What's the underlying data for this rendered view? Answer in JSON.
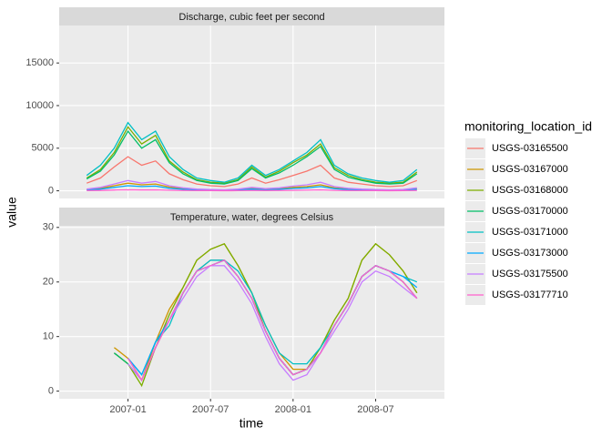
{
  "chart_data": {
    "type": "line",
    "x_label": "time",
    "y_label": "value",
    "x": [
      "2006-10",
      "2006-11",
      "2006-12",
      "2007-01",
      "2007-02",
      "2007-03",
      "2007-04",
      "2007-05",
      "2007-06",
      "2007-07",
      "2007-08",
      "2007-09",
      "2007-10",
      "2007-11",
      "2007-12",
      "2008-01",
      "2008-02",
      "2008-03",
      "2008-04",
      "2008-05",
      "2008-06",
      "2008-07",
      "2008-08",
      "2008-09",
      "2008-10"
    ],
    "xlim": [
      "2006-08",
      "2008-12"
    ],
    "xticks": [
      "2007-01",
      "2007-07",
      "2008-01",
      "2008-07"
    ],
    "grid": true,
    "legend": {
      "title": "monitoring_location_id",
      "position": "right",
      "series": [
        {
          "name": "USGS-03165500",
          "color": "#F8766D"
        },
        {
          "name": "USGS-03167000",
          "color": "#CD9600"
        },
        {
          "name": "USGS-03168000",
          "color": "#7CAE00"
        },
        {
          "name": "USGS-03170000",
          "color": "#00BE67"
        },
        {
          "name": "USGS-03171000",
          "color": "#00BFC4"
        },
        {
          "name": "USGS-03173000",
          "color": "#00A9FF"
        },
        {
          "name": "USGS-03175500",
          "color": "#C77CFF"
        },
        {
          "name": "USGS-03177710",
          "color": "#FF61CC"
        }
      ]
    },
    "panels": [
      {
        "title": "Discharge, cubic feet per second",
        "ylim": [
          -900,
          19400
        ],
        "yticks": [
          0,
          5000,
          10000,
          15000
        ],
        "series": [
          {
            "values": [
              900,
              1500,
              2800,
              4000,
              3000,
              3500,
              2000,
              1300,
              800,
              600,
              500,
              800,
              1500,
              900,
              1300,
              1800,
              2300,
              3000,
              1500,
              1000,
              800,
              600,
              500,
              600,
              1200
            ]
          },
          {
            "values": [
              150,
              300,
              600,
              900,
              700,
              800,
              450,
              250,
              150,
              100,
              80,
              150,
              300,
              180,
              250,
              400,
              500,
              700,
              350,
              200,
              150,
              100,
              80,
              100,
              250
            ]
          },
          {
            "values": [
              1500,
              2500,
              4500,
              7500,
              5500,
              6500,
              3500,
              2200,
              1300,
              1000,
              900,
              1300,
              2800,
              1600,
              2300,
              3300,
              4200,
              5500,
              2700,
              1800,
              1300,
              1000,
              900,
              1000,
              2200
            ]
          },
          {
            "values": [
              1400,
              2300,
              4200,
              7000,
              5000,
              6000,
              3300,
              2000,
              1200,
              900,
              800,
              1200,
              2600,
              1500,
              2100,
              3000,
              4000,
              5200,
              2500,
              1600,
              1200,
              900,
              800,
              900,
              2000
            ]
          },
          {
            "values": [
              1800,
              3000,
              5000,
              8000,
              6000,
              7000,
              4000,
              2500,
              1500,
              1200,
              1000,
              1500,
              3000,
              1800,
              2500,
              3500,
              4500,
              6000,
              3000,
              2000,
              1500,
              1200,
              1000,
              1200,
              2500
            ]
          },
          {
            "values": [
              100,
              200,
              400,
              600,
              500,
              550,
              300,
              180,
              100,
              80,
              60,
              100,
              200,
              120,
              180,
              280,
              350,
              500,
              250,
              150,
              100,
              80,
              60,
              80,
              180
            ]
          },
          {
            "values": [
              200,
              400,
              800,
              1200,
              900,
              1100,
              600,
              350,
              200,
              150,
              120,
              200,
              400,
              250,
              350,
              550,
              700,
              1000,
              500,
              300,
              200,
              150,
              120,
              150,
              350
            ]
          },
          {
            "values": [
              20,
              40,
              80,
              120,
              90,
              100,
              60,
              35,
              20,
              15,
              12,
              20,
              40,
              25,
              35,
              55,
              70,
              100,
              50,
              30,
              20,
              15,
              12,
              15,
              35
            ]
          }
        ]
      },
      {
        "title": "Temperature, water, degrees Celsius",
        "ylim": [
          -1.4,
          30.3
        ],
        "yticks": [
          0,
          10,
          20,
          30
        ],
        "series": [
          {
            "values": [
              null,
              null,
              7,
              5,
              2,
              8,
              13,
              18,
              22,
              24,
              24,
              21,
              17,
              11,
              6,
              3,
              4,
              7,
              12,
              16,
              21,
              23,
              22,
              20,
              17
            ]
          },
          {
            "values": [
              null,
              null,
              8,
              6,
              2,
              9,
              15,
              19,
              24,
              26,
              27,
              23,
              18,
              12,
              7,
              4,
              4,
              8,
              13,
              17,
              24,
              27,
              25,
              22,
              18
            ]
          },
          {
            "values": [
              null,
              null,
              7,
              5,
              1,
              8,
              14,
              19,
              24,
              26,
              27,
              23,
              18,
              11,
              6,
              3,
              4,
              8,
              13,
              17,
              24,
              27,
              25,
              22,
              18
            ]
          },
          {
            "values": [
              null,
              null,
              7,
              5,
              2,
              8,
              13,
              18,
              22,
              23,
              24,
              21,
              17,
              11,
              6,
              3,
              4,
              7,
              12,
              16,
              21,
              23,
              22,
              20,
              17
            ]
          },
          {
            "values": [
              null,
              null,
              null,
              6,
              3,
              9,
              12,
              18,
              22,
              24,
              24,
              22,
              18,
              12,
              7,
              5,
              5,
              8,
              12,
              16,
              21,
              23,
              22,
              21,
              20
            ]
          },
          {
            "values": [
              null,
              null,
              null,
              6,
              3,
              9,
              13,
              18,
              22,
              23,
              24,
              21,
              17,
              11,
              6,
              3,
              4,
              7,
              12,
              16,
              21,
              23,
              22,
              21,
              19
            ]
          },
          {
            "values": [
              null,
              null,
              null,
              5,
              2,
              8,
              13,
              17,
              21,
              23,
              23,
              20,
              16,
              10,
              5,
              2,
              3,
              7,
              11,
              15,
              20,
              22,
              21,
              19,
              17
            ]
          },
          {
            "values": [
              null,
              null,
              null,
              6,
              2,
              8,
              13,
              18,
              22,
              23,
              24,
              21,
              17,
              11,
              6,
              3,
              4,
              7,
              12,
              16,
              21,
              23,
              22,
              20,
              17
            ]
          }
        ]
      }
    ]
  }
}
